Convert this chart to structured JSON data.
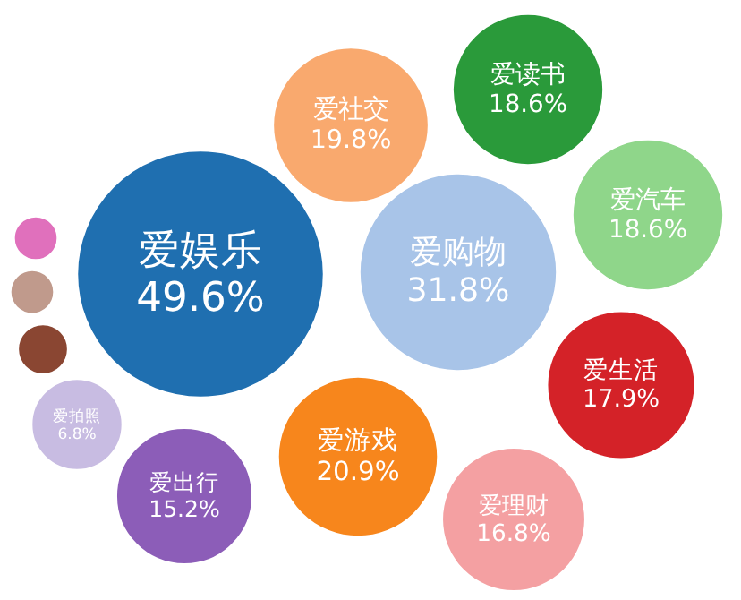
{
  "chart_data": {
    "type": "other",
    "categories": [
      "爱娱乐",
      "爱社交",
      "爱读书",
      "爱汽车",
      "爱购物",
      "爱生活",
      "爱理财",
      "爱游戏",
      "爱出行",
      "爱拍照",
      null,
      null,
      null
    ],
    "values": [
      49.6,
      19.8,
      18.6,
      18.6,
      31.8,
      17.9,
      16.8,
      20.9,
      15.2,
      6.8,
      null,
      null,
      null
    ],
    "value_labels": [
      "49.6%",
      "19.8%",
      "18.6%",
      "18.6%",
      "31.8%",
      "17.9%",
      "16.8%",
      "20.9%",
      "15.2%",
      "6.8%",
      null,
      null,
      null
    ],
    "colors": [
      "#1f6fb0",
      "#f9a96e",
      "#2a9a3a",
      "#8fd68a",
      "#a8c4e8",
      "#d42228",
      "#f4a0a2",
      "#f7861c",
      "#8c5db8",
      "#c8bce2",
      "#e070bc",
      "#c09a8c",
      "#8a4632"
    ]
  }
}
